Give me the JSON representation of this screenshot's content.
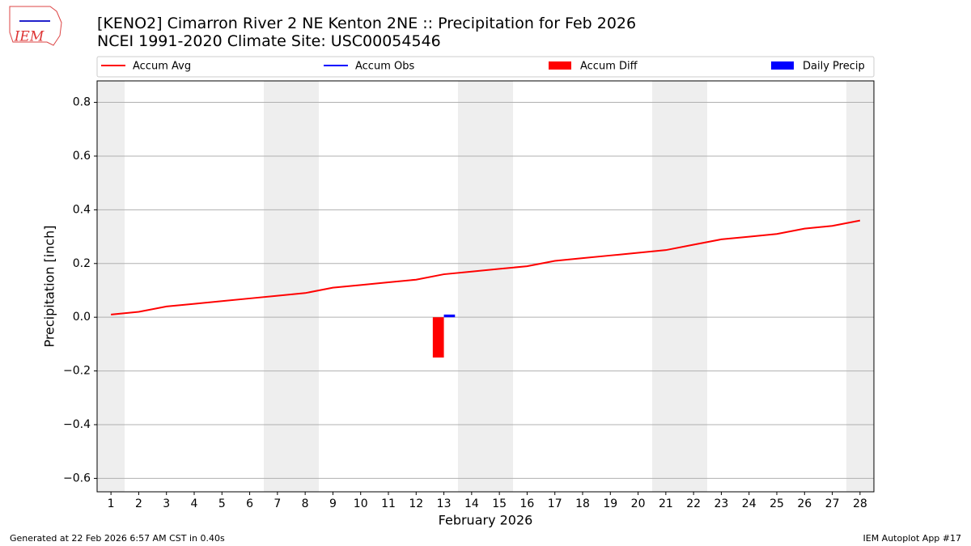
{
  "chart_data": {
    "type": "combo",
    "title": "[KENO2] Cimarron River 2 NE Kenton 2NE :: Precipitation for Feb 2026",
    "subtitle": "NCEI 1991-2020 Climate Site: USC00054546",
    "logo_text": "IEM",
    "x_label": "February 2026",
    "y_label": "Precipitation [inch]",
    "footer_left": "Generated at 22 Feb 2026 6:57 AM CST in 0.40s",
    "footer_right": "IEM Autoplot App #17",
    "x": [
      1,
      2,
      3,
      4,
      5,
      6,
      7,
      8,
      9,
      10,
      11,
      12,
      13,
      14,
      15,
      16,
      17,
      18,
      19,
      20,
      21,
      22,
      23,
      24,
      25,
      26,
      27,
      28
    ],
    "xlim": [
      0.5,
      28.5
    ],
    "xticks": [
      1,
      2,
      3,
      4,
      5,
      6,
      7,
      8,
      9,
      10,
      11,
      12,
      13,
      14,
      15,
      16,
      17,
      18,
      19,
      20,
      21,
      22,
      23,
      24,
      25,
      26,
      27,
      28
    ],
    "ylim": [
      -0.65,
      0.88
    ],
    "yticks": [
      {
        "value": -0.6,
        "label": "−0.6"
      },
      {
        "value": -0.4,
        "label": "−0.4"
      },
      {
        "value": -0.2,
        "label": "−0.2"
      },
      {
        "value": 0,
        "label": "0.0"
      },
      {
        "value": 0.2,
        "label": "0.2"
      },
      {
        "value": 0.4,
        "label": "0.4"
      },
      {
        "value": 0.6,
        "label": "0.6"
      },
      {
        "value": 0.8,
        "label": "0.8"
      }
    ],
    "grid": true,
    "series": [
      {
        "name": "Accum Avg",
        "type": "line",
        "color": "#ff0000",
        "values": [
          0.01,
          0.02,
          0.04,
          0.05,
          0.06,
          0.07,
          0.08,
          0.09,
          0.11,
          0.12,
          0.13,
          0.14,
          0.16,
          0.17,
          0.18,
          0.19,
          0.21,
          0.22,
          0.23,
          0.24,
          0.25,
          0.27,
          0.29,
          0.3,
          0.31,
          0.33,
          0.34,
          0.36
        ]
      },
      {
        "name": "Accum Obs",
        "type": "line",
        "color": "#0000ff",
        "values": [
          null,
          null,
          null,
          null,
          null,
          null,
          null,
          null,
          null,
          null,
          null,
          null,
          0.01,
          null,
          null,
          null,
          null,
          null,
          null,
          null,
          null,
          null,
          null,
          null,
          null,
          null,
          null,
          null
        ]
      },
      {
        "name": "Accum Diff",
        "type": "bar",
        "color": "#ff0000",
        "values": [
          null,
          null,
          null,
          null,
          null,
          null,
          null,
          null,
          null,
          null,
          null,
          null,
          -0.15,
          null,
          null,
          null,
          null,
          null,
          null,
          null,
          null,
          null,
          null,
          null,
          null,
          null,
          null,
          null
        ]
      },
      {
        "name": "Daily Precip",
        "type": "bar",
        "color": "#0000ff",
        "values": [
          null,
          null,
          null,
          null,
          null,
          null,
          null,
          null,
          null,
          null,
          null,
          null,
          0.01,
          null,
          null,
          null,
          null,
          null,
          null,
          null,
          null,
          null,
          null,
          null,
          null,
          null,
          null,
          null
        ]
      }
    ]
  }
}
